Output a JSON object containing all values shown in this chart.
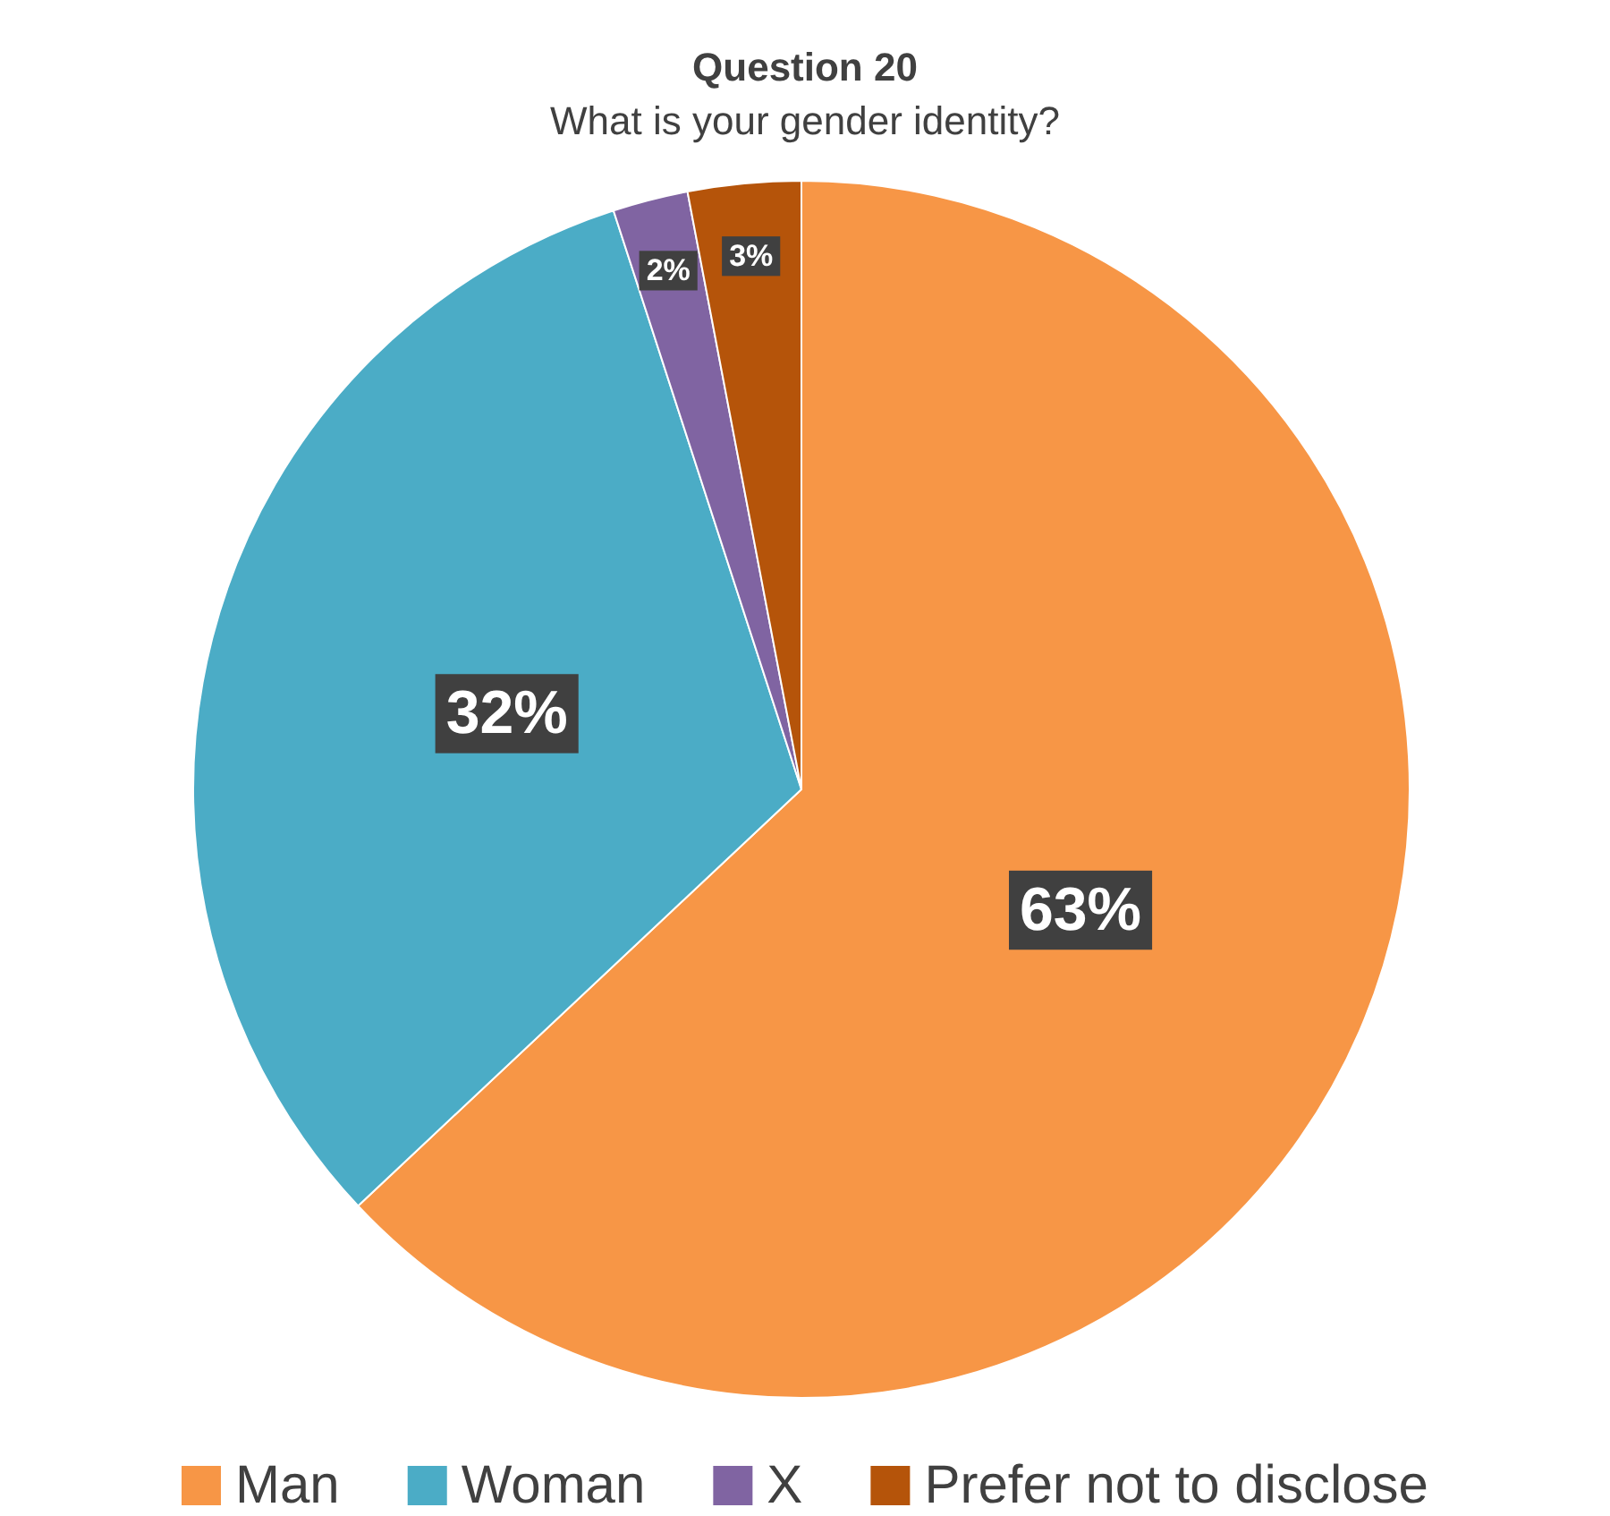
{
  "chart_data": {
    "type": "pie",
    "title": "Question 20",
    "subtitle": "What is your gender identity?",
    "categories": [
      "Man",
      "Woman",
      "X",
      "Prefer not to disclose"
    ],
    "values": [
      63,
      32,
      2,
      3
    ],
    "colors": [
      "#f79646",
      "#4bacc6",
      "#8064a2",
      "#b5540a"
    ],
    "value_labels": [
      "63%",
      "32%",
      "2%",
      "3%"
    ],
    "legend": "bottom"
  }
}
